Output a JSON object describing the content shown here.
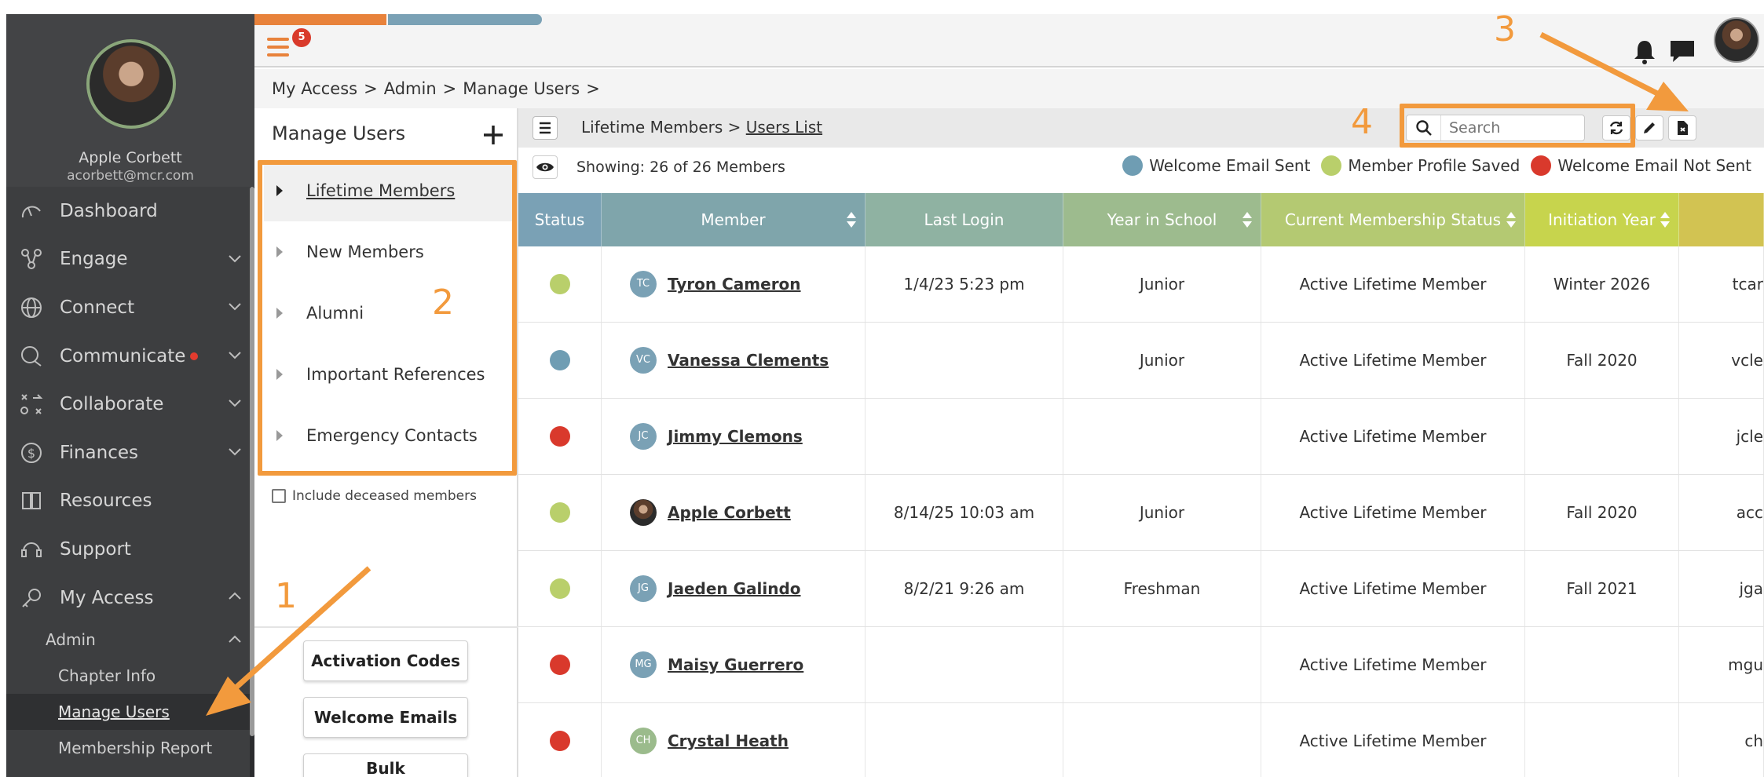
{
  "profile": {
    "name": "Apple Corbett",
    "email": "acorbett@mcr.com"
  },
  "topbar": {
    "notification_count": "5"
  },
  "sidebar": {
    "items": [
      {
        "label": "Dashboard",
        "icon": "dashboard-icon"
      },
      {
        "label": "Engage",
        "icon": "engage-icon"
      },
      {
        "label": "Connect",
        "icon": "globe-icon"
      },
      {
        "label": "Communicate",
        "icon": "chat-icon"
      },
      {
        "label": "Collaborate",
        "icon": "collaborate-icon"
      },
      {
        "label": "Finances",
        "icon": "dollar-icon"
      },
      {
        "label": "Resources",
        "icon": "book-icon"
      },
      {
        "label": "Support",
        "icon": "headset-icon"
      },
      {
        "label": "My Access",
        "icon": "key-icon"
      }
    ],
    "admin_label": "Admin",
    "admin_items": [
      "Chapter Info",
      "Manage Users",
      "Membership Report"
    ]
  },
  "breadcrumb": [
    "My Access",
    "Admin",
    "Manage Users"
  ],
  "left_panel": {
    "title": "Manage Users",
    "lists": [
      "Lifetime Members",
      "New Members",
      "Alumni",
      "Important References",
      "Emergency Contacts"
    ],
    "include_deceased": "Include deceased members",
    "buttons": [
      "Activation Codes",
      "Welcome Emails",
      "Bulk"
    ]
  },
  "main": {
    "path_prefix": "Lifetime Members >",
    "path_link": "Users List",
    "search_placeholder": "Search",
    "showing": "Showing: 26 of 26 Members",
    "legend": [
      {
        "label": "Welcome Email Sent",
        "color": "#6f9db3"
      },
      {
        "label": "Member Profile Saved",
        "color": "#b9cf6b"
      },
      {
        "label": "Welcome Email Not Sent",
        "color": "#d9392c"
      }
    ],
    "columns": [
      "Status",
      "Member",
      "Last Login",
      "Year in School",
      "Current Membership Status",
      "Initiation Year"
    ],
    "rows": [
      {
        "status_color": "#b9cf6b",
        "initials": "TC",
        "name": "Tyron Cameron",
        "last_login": "1/4/23 5:23 pm",
        "year": "Junior",
        "membership": "Active Lifetime Member",
        "initiation": "Winter 2026",
        "email": "tcar"
      },
      {
        "status_color": "#6f9db3",
        "initials": "VC",
        "name": "Vanessa Clements",
        "last_login": "",
        "year": "Junior",
        "membership": "Active Lifetime Member",
        "initiation": "Fall 2020",
        "email": "vcle"
      },
      {
        "status_color": "#d9392c",
        "initials": "JC",
        "name": "Jimmy Clemons",
        "last_login": "",
        "year": "",
        "membership": "Active Lifetime Member",
        "initiation": "",
        "email": "jcle"
      },
      {
        "status_color": "#b9cf6b",
        "initials": "",
        "name": "Apple Corbett",
        "last_login": "8/14/25 10:03 am",
        "year": "Junior",
        "membership": "Active Lifetime Member",
        "initiation": "Fall 2020",
        "email": "acc"
      },
      {
        "status_color": "#b9cf6b",
        "initials": "JG",
        "name": "Jaeden Galindo",
        "last_login": "8/2/21 9:26 am",
        "year": "Freshman",
        "membership": "Active Lifetime Member",
        "initiation": "Fall 2021",
        "email": "jga"
      },
      {
        "status_color": "#d9392c",
        "initials": "MG",
        "name": "Maisy Guerrero",
        "last_login": "",
        "year": "",
        "membership": "Active Lifetime Member",
        "initiation": "",
        "email": "mgu"
      },
      {
        "status_color": "#d9392c",
        "initials": "CH",
        "name": "Crystal Heath",
        "last_login": "",
        "year": "",
        "membership": "Active Lifetime Member",
        "initiation": "",
        "email": "ch"
      }
    ]
  },
  "annotations": [
    "1",
    "2",
    "3",
    "4"
  ]
}
